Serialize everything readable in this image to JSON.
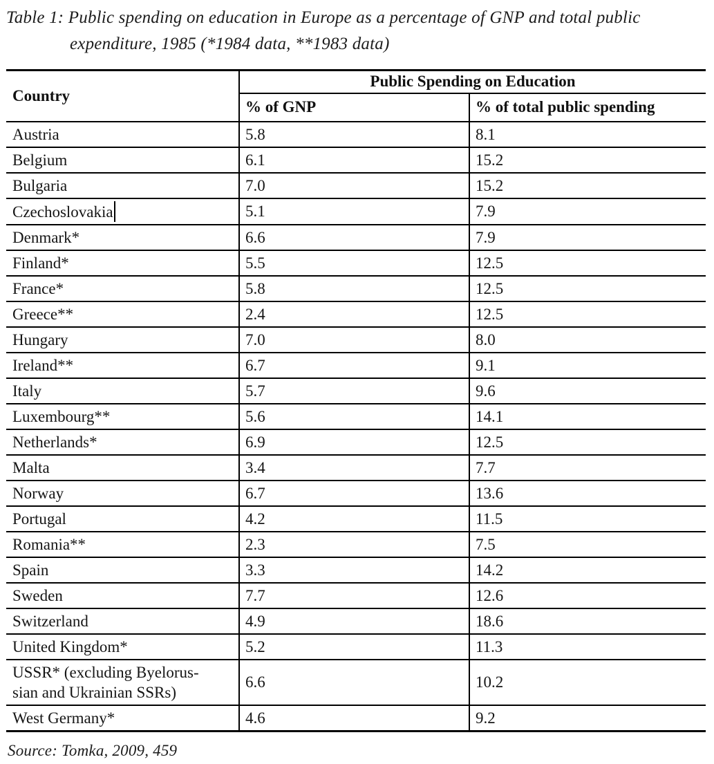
{
  "page": {
    "caption_lines": [
      "Table 1: Public spending on education in Europe as a percentage of GNP and total public",
      "expenditure, 1985 (*1984 data, **1983 data)"
    ],
    "source": "Source: Tomka, 2009, 459"
  },
  "table": {
    "headers": {
      "country": "Country",
      "group": "Public Spending on Education",
      "gnp": "% of GNP",
      "total": "% of total public spending"
    },
    "rows": [
      {
        "country": "Austria",
        "gnp": "5.8",
        "total": "8.1"
      },
      {
        "country": "Belgium",
        "gnp": "6.1",
        "total": "15.2"
      },
      {
        "country": "Bulgaria",
        "gnp": "7.0",
        "total": "15.2"
      },
      {
        "country": "Czechoslovakia",
        "gnp": "5.1",
        "total": "7.9",
        "cursor": true
      },
      {
        "country": "Denmark*",
        "gnp": "6.6",
        "total": "7.9"
      },
      {
        "country": "Finland*",
        "gnp": "5.5",
        "total": "12.5"
      },
      {
        "country": "France*",
        "gnp": "5.8",
        "total": "12.5"
      },
      {
        "country": "Greece**",
        "gnp": "2.4",
        "total": "12.5"
      },
      {
        "country": "Hungary",
        "gnp": "7.0",
        "total": "8.0"
      },
      {
        "country": "Ireland**",
        "gnp": "6.7",
        "total": "9.1"
      },
      {
        "country": "Italy",
        "gnp": "5.7",
        "total": "9.6"
      },
      {
        "country": "Luxembourg**",
        "gnp": "5.6",
        "total": "14.1"
      },
      {
        "country": "Netherlands*",
        "gnp": "6.9",
        "total": "12.5"
      },
      {
        "country": "Malta",
        "gnp": "3.4",
        "total": "7.7"
      },
      {
        "country": "Norway",
        "gnp": "6.7",
        "total": "13.6"
      },
      {
        "country": "Portugal",
        "gnp": "4.2",
        "total": "11.5"
      },
      {
        "country": "Romania**",
        "gnp": "2.3",
        "total": "7.5"
      },
      {
        "country": "Spain",
        "gnp": "3.3",
        "total": "14.2"
      },
      {
        "country": "Sweden",
        "gnp": "7.7",
        "total": "12.6"
      },
      {
        "country": "Switzerland",
        "gnp": "4.9",
        "total": "18.6"
      },
      {
        "country": "United Kingdom*",
        "gnp": "5.2",
        "total": "11.3"
      },
      {
        "country": "USSR* (excluding Byelorus-\nsian and Ukrainian SSRs)",
        "gnp": "6.6",
        "total": "10.2"
      },
      {
        "country": "West Germany*",
        "gnp": "4.6",
        "total": "9.2"
      }
    ]
  },
  "colors": {
    "text": "#161616",
    "border": "#000000",
    "background": "#ffffff"
  }
}
